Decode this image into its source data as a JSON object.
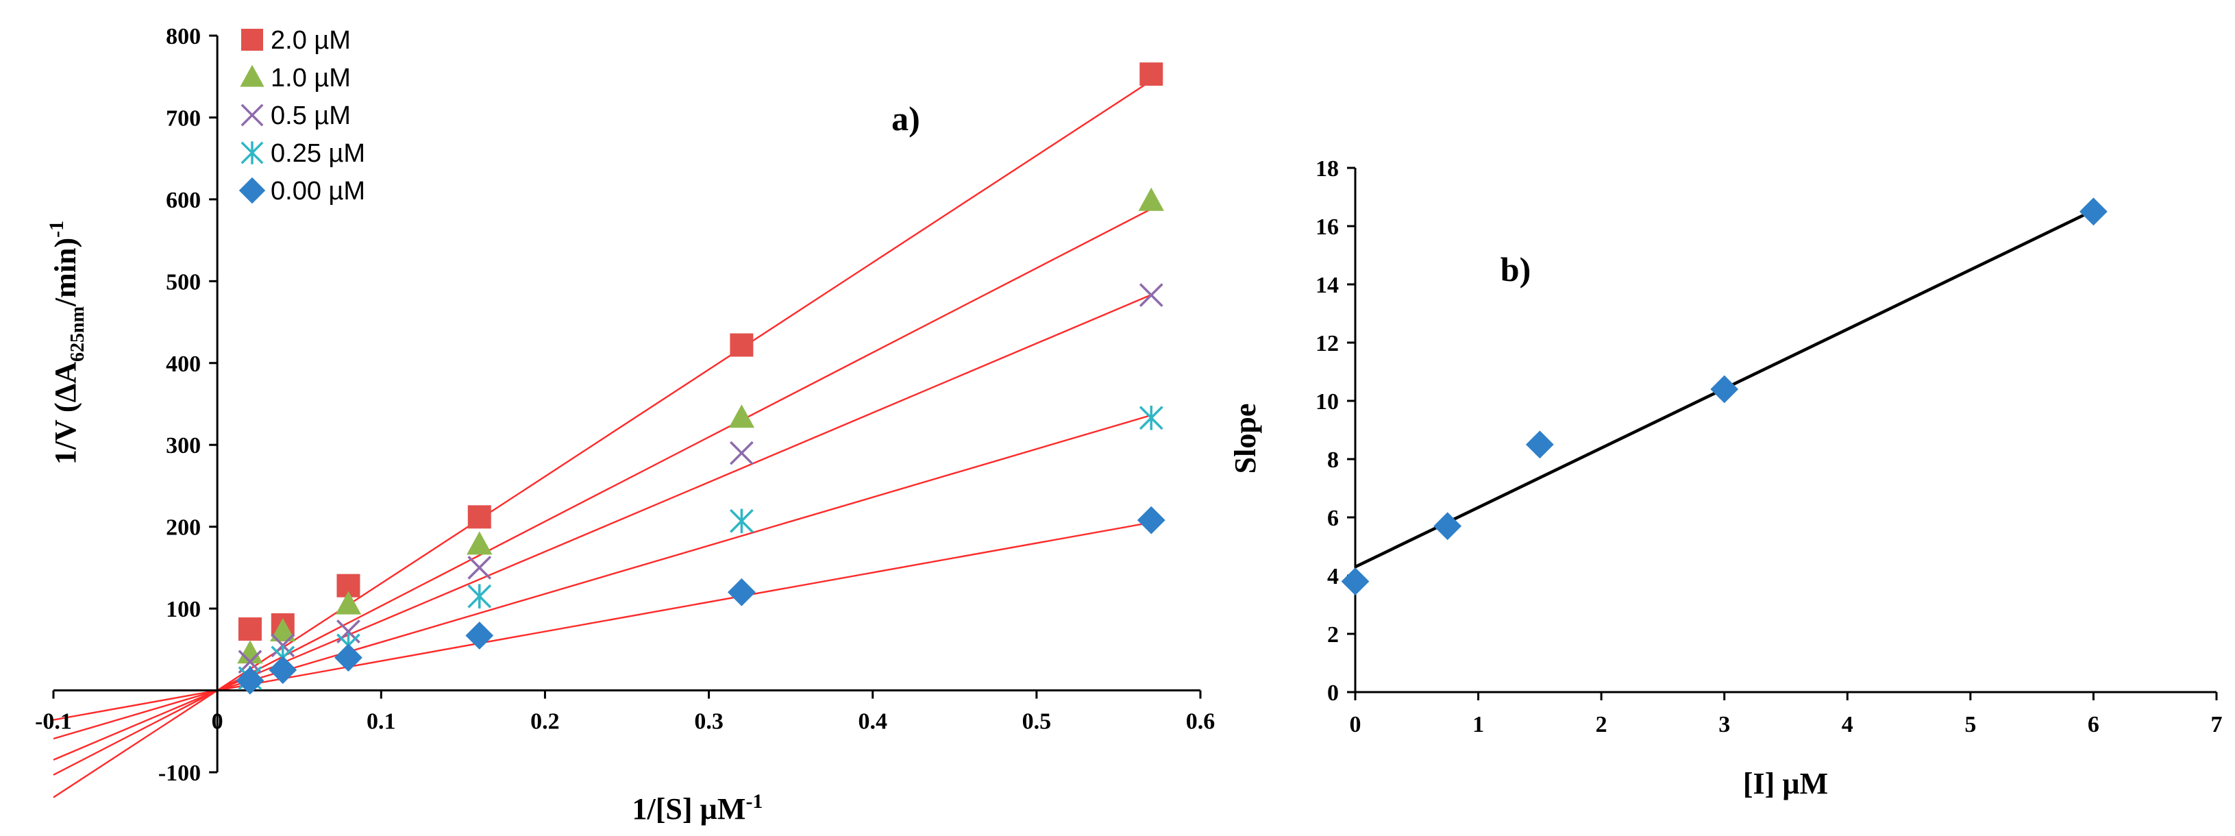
{
  "chart_data": [
    {
      "type": "scatter",
      "panel_label": "a)",
      "xlabel": {
        "main": "1/[S] µM",
        "sup": "-1"
      },
      "ylabel": {
        "main": "1/V (ΔA",
        "sub": "625nm",
        "mid": "/min)",
        "sup": "-1"
      },
      "xlim": [
        -0.1,
        0.6
      ],
      "ylim": [
        -100,
        800
      ],
      "xticks": [
        -0.1,
        0,
        0.1,
        0.2,
        0.3,
        0.4,
        0.5,
        0.6
      ],
      "xtick_labels": [
        "-0.1",
        "0",
        "0.1",
        "0.2",
        "0.3",
        "0.4",
        "0.5",
        "0.6"
      ],
      "yticks": [
        -100,
        100,
        200,
        300,
        400,
        500,
        600,
        700,
        800
      ],
      "ytick_labels": [
        "-100",
        "100",
        "200",
        "300",
        "400",
        "500",
        "600",
        "700",
        "800"
      ],
      "zero_label": "0",
      "x": [
        0.02,
        0.04,
        0.08,
        0.16,
        0.32,
        0.57
      ],
      "legend_position": "top-left",
      "trendline_color": "#ff2a2a",
      "trendline_x_range": [
        -0.1,
        0.57
      ],
      "series": [
        {
          "name": "2.0 µM",
          "marker": "square",
          "color": "#e2504c",
          "values": [
            75,
            80,
            128,
            212,
            422,
            753
          ],
          "fit": {
            "slope": 1307,
            "intercept": 0
          }
        },
        {
          "name": "1.0 µM",
          "marker": "triangle",
          "color": "#8fb84c",
          "values": [
            45,
            72,
            105,
            178,
            333,
            598
          ],
          "fit": {
            "slope": 1032,
            "intercept": 0
          }
        },
        {
          "name": "0.5 µM",
          "marker": "x",
          "color": "#8e6bab",
          "values": [
            35,
            55,
            72,
            150,
            290,
            483
          ],
          "fit": {
            "slope": 848,
            "intercept": 0
          }
        },
        {
          "name": "0.25 µM",
          "marker": "asterisk",
          "color": "#2fb6c6",
          "values": [
            15,
            40,
            55,
            115,
            207,
            333
          ],
          "fit": {
            "slope": 590,
            "intercept": 0
          }
        },
        {
          "name": "0.00 µM",
          "marker": "diamond",
          "color": "#2f80c8",
          "values": [
            12,
            25,
            40,
            67,
            120,
            208
          ],
          "fit": {
            "slope": 360,
            "intercept": 0
          }
        }
      ]
    },
    {
      "type": "scatter",
      "panel_label": "b)",
      "xlabel": "[I] µM",
      "ylabel": "Slope",
      "xlim": [
        0,
        7
      ],
      "ylim": [
        0,
        18
      ],
      "xticks": [
        0,
        1,
        2,
        3,
        4,
        5,
        6,
        7
      ],
      "xtick_labels": [
        "0",
        "1",
        "2",
        "3",
        "4",
        "5",
        "6",
        "7"
      ],
      "yticks": [
        0,
        2,
        4,
        6,
        8,
        10,
        12,
        14,
        16,
        18
      ],
      "ytick_labels": [
        "0",
        "2",
        "4",
        "6",
        "8",
        "10",
        "12",
        "14",
        "16",
        "18"
      ],
      "marker": "diamond",
      "color": "#2f80c8",
      "x": [
        0,
        0.75,
        1.5,
        3,
        6
      ],
      "values": [
        3.8,
        5.7,
        8.5,
        10.4,
        16.5
      ],
      "trendline": {
        "slope": 2.04,
        "intercept": 4.3,
        "x_range": [
          0,
          6
        ],
        "color": "#000000"
      }
    }
  ]
}
